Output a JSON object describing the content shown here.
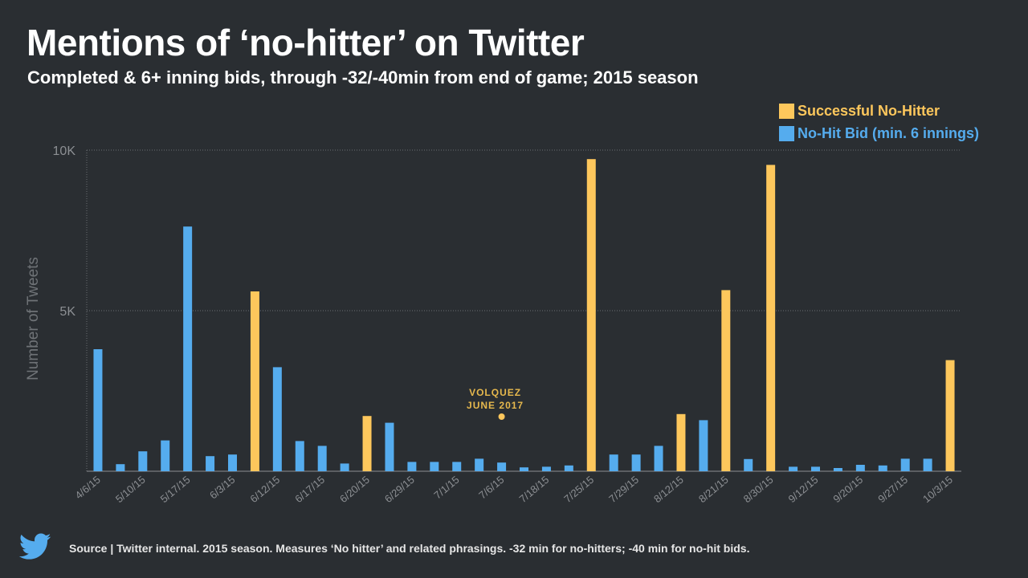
{
  "header": {
    "title": "Mentions of ‘no-hitter’ on Twitter",
    "subtitle": "Completed & 6+ inning bids, through -32/-40min from end of game; 2015 season"
  },
  "legend": [
    {
      "label": "Successful No-Hitter",
      "color": "#fdc75c"
    },
    {
      "label": "No-Hit Bid (min. 6 innings)",
      "color": "#55acee"
    }
  ],
  "footer": {
    "source": "Source | Twitter internal. 2015 season. Measures ‘No hitter’ and related phrasings. -32 min for no-hitters; -40 min for no-hit bids.",
    "logo_icon": "twitter-bird-icon"
  },
  "colors": {
    "background": "#2a2e32",
    "no_hitter": "#fdc75c",
    "bid": "#55acee",
    "annotation": "#e6b84d",
    "axis_text": "#8c8f93"
  },
  "chart_data": {
    "type": "bar",
    "ylabel": "Number of Tweets",
    "ylim": [
      0,
      10000
    ],
    "yticks": [
      {
        "value": 5000,
        "label": "5K"
      },
      {
        "value": 10000,
        "label": "10K"
      }
    ],
    "grid": true,
    "legend_position": "top-right",
    "series": [
      {
        "name": "No-Hit Bid (min. 6 innings)",
        "values": [
          3800,
          220,
          620,
          960,
          7620,
          470,
          520,
          0,
          3240,
          940,
          790,
          240,
          0,
          1510,
          290,
          290,
          290,
          390,
          270,
          120,
          140,
          180,
          0,
          520,
          520,
          790,
          0,
          1590,
          0,
          380,
          0,
          140,
          140,
          100,
          200,
          180,
          390,
          390,
          0
        ]
      },
      {
        "name": "Successful No-Hitter",
        "values": [
          0,
          0,
          0,
          0,
          0,
          0,
          0,
          5600,
          0,
          0,
          0,
          0,
          1720,
          0,
          0,
          0,
          0,
          0,
          0,
          0,
          0,
          0,
          9720,
          0,
          0,
          0,
          1780,
          0,
          5640,
          0,
          9540,
          0,
          0,
          0,
          0,
          0,
          0,
          0,
          3460
        ]
      }
    ],
    "x_tick_labels": [
      {
        "index": 0,
        "label": "4/6/15"
      },
      {
        "index": 2,
        "label": "5/10/15"
      },
      {
        "index": 4,
        "label": "5/17/15"
      },
      {
        "index": 6,
        "label": "6/3/15"
      },
      {
        "index": 8,
        "label": "6/12/15"
      },
      {
        "index": 10,
        "label": "6/17/15"
      },
      {
        "index": 12,
        "label": "6/20/15"
      },
      {
        "index": 14,
        "label": "6/29/15"
      },
      {
        "index": 16,
        "label": "7/1/15"
      },
      {
        "index": 18,
        "label": "7/6/15"
      },
      {
        "index": 20,
        "label": "7/18/15"
      },
      {
        "index": 22,
        "label": "7/25/15"
      },
      {
        "index": 24,
        "label": "7/29/15"
      },
      {
        "index": 26,
        "label": "8/12/15"
      },
      {
        "index": 28,
        "label": "8/21/15"
      },
      {
        "index": 30,
        "label": "8/30/15"
      },
      {
        "index": 32,
        "label": "9/12/15"
      },
      {
        "index": 34,
        "label": "9/20/15"
      },
      {
        "index": 36,
        "label": "9/27/15"
      },
      {
        "index": 38,
        "label": "10/3/15"
      }
    ],
    "annotation": {
      "lines": [
        "VOLQUEZ",
        "JUNE 2017"
      ],
      "index": 18,
      "value": 1700
    }
  }
}
